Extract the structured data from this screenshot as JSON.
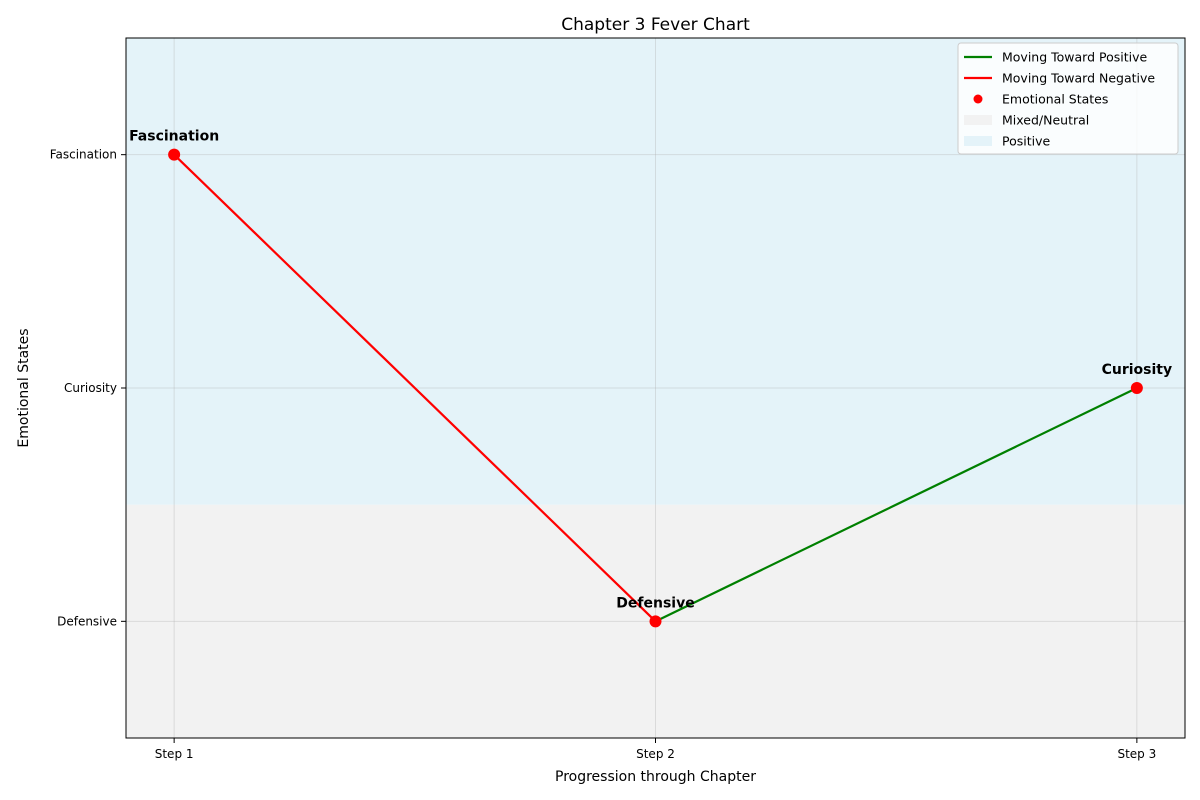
{
  "chart_data": {
    "type": "line",
    "title": "Chapter 3 Fever Chart",
    "xlabel": "Progression through Chapter",
    "ylabel": "Emotional States",
    "categories": [
      "Step 1",
      "Step 2",
      "Step 3"
    ],
    "y_tick_labels": [
      "Defensive",
      "Curiosity",
      "Fascination"
    ],
    "xlim": [
      0.9,
      3.1
    ],
    "ylim": [
      -0.5,
      2.5
    ],
    "grid": true,
    "legend_position": "top-right",
    "points": [
      {
        "x": "Step 1",
        "y": "Fascination",
        "label": "Fascination"
      },
      {
        "x": "Step 2",
        "y": "Defensive",
        "label": "Defensive"
      },
      {
        "x": "Step 3",
        "y": "Curiosity",
        "label": "Curiosity"
      }
    ],
    "segments": [
      {
        "from": "Step 1",
        "to": "Step 2",
        "series": "Moving Toward Negative"
      },
      {
        "from": "Step 2",
        "to": "Step 3",
        "series": "Moving Toward Positive"
      }
    ],
    "regions": [
      {
        "name": "Mixed/Neutral",
        "y_from": -0.5,
        "y_to": 0.5,
        "color": "#f2f2f2"
      },
      {
        "name": "Positive",
        "y_from": 0.5,
        "y_to": 2.5,
        "color": "#e4f3f9"
      }
    ],
    "legend": [
      {
        "name": "Moving Toward Positive",
        "kind": "line",
        "color": "#008000"
      },
      {
        "name": "Moving Toward Negative",
        "kind": "line",
        "color": "#ff0000"
      },
      {
        "name": "Emotional States",
        "kind": "marker",
        "color": "#ff0000"
      },
      {
        "name": "Mixed/Neutral",
        "kind": "patch",
        "color": "#f2f2f2"
      },
      {
        "name": "Positive",
        "kind": "patch",
        "color": "#e4f3f9"
      }
    ],
    "colors": {
      "positive_line": "#008000",
      "negative_line": "#ff0000",
      "marker": "#ff0000"
    }
  }
}
